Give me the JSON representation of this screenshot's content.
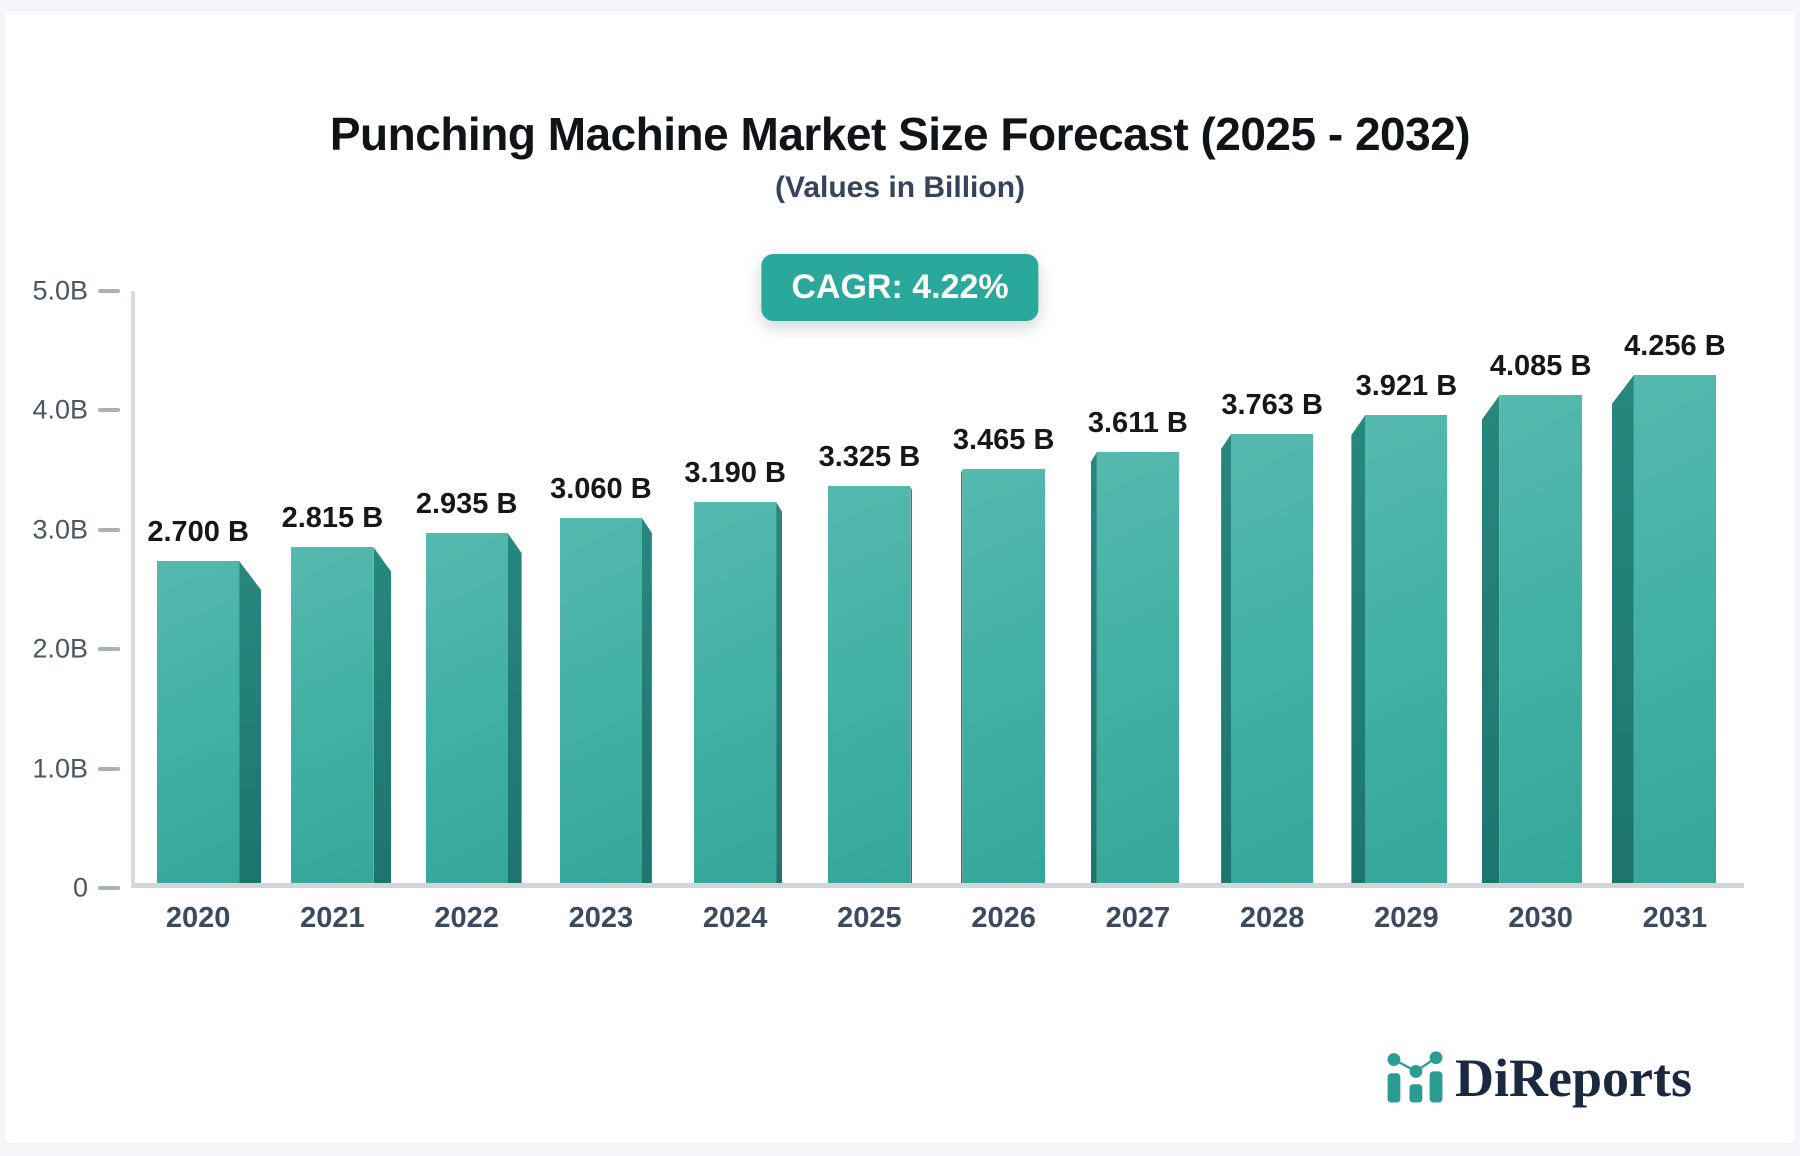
{
  "header": {
    "title": "Punching Machine Market Size Forecast (2025 - 2032)",
    "subtitle": "(Values in Billion)",
    "cagr_badge": "CAGR: 4.22%"
  },
  "chart_data": {
    "type": "bar",
    "title": "Punching Machine Market Size Forecast (2025 - 2032)",
    "subtitle": "(Values in Billion)",
    "cagr_percent": 4.22,
    "categories": [
      "2020",
      "2021",
      "2022",
      "2023",
      "2024",
      "2025",
      "2026",
      "2027",
      "2028",
      "2029",
      "2030",
      "2031"
    ],
    "values": [
      2.7,
      2.815,
      2.935,
      3.06,
      3.19,
      3.325,
      3.465,
      3.611,
      3.763,
      3.921,
      4.085,
      4.256
    ],
    "value_labels": [
      "2.700 B",
      "2.815 B",
      "2.935 B",
      "3.060 B",
      "3.190 B",
      "3.325 B",
      "3.465 B",
      "3.611 B",
      "3.763 B",
      "3.921 B",
      "4.085 B",
      "4.256 B"
    ],
    "xlabel": "",
    "ylabel": "",
    "ylim": [
      0,
      5
    ],
    "yticks": [
      {
        "label": "0",
        "value": 0
      },
      {
        "label": "1.0B",
        "value": 1
      },
      {
        "label": "2.0B",
        "value": 2
      },
      {
        "label": "3.0B",
        "value": 3
      },
      {
        "label": "4.0B",
        "value": 4
      },
      {
        "label": "5.0B",
        "value": 5
      }
    ],
    "grid": false,
    "legend": "none",
    "bar_face_color": "#44b1a5",
    "bar_side_color": "#1f7d74",
    "accent_color": "#2aa89b"
  },
  "branding": {
    "logo_text": "DiReports",
    "logo_icon": "bar-chart-logo-icon"
  }
}
